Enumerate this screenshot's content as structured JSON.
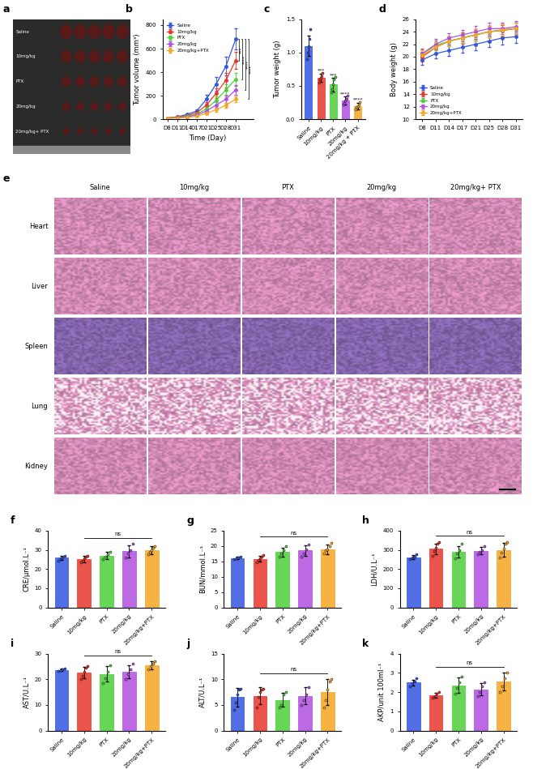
{
  "photo": {
    "panel": "a",
    "rows": [
      "Saline",
      "10mg/kg",
      "PTX",
      "20mg/kg",
      "20mg/kg+ PTX"
    ]
  },
  "histology": {
    "panel": "e",
    "columns": [
      "Saline",
      "10mg/kg",
      "PTX",
      "20mg/kg",
      "20mg/kg+ PTX"
    ],
    "rows": [
      "Heart",
      "Liver",
      "Spleen",
      "Lung",
      "Kidney"
    ]
  },
  "chart_data": [
    {
      "panel": "b",
      "type": "line",
      "ylabel": "Tumor volume (mm³)",
      "xlabel": "Time (Day)",
      "categories": [
        "D8",
        "D11",
        "D14",
        "D17",
        "D21",
        "D25",
        "D28",
        "D31"
      ],
      "ylim": [
        0,
        850
      ],
      "yticks": [
        0,
        200,
        400,
        600,
        800
      ],
      "legend": "upper left",
      "marker": "o",
      "series": [
        {
          "name": "Saline",
          "color": "#3355e0",
          "values": [
            10,
            20,
            40,
            70,
            170,
            300,
            450,
            680
          ],
          "errors": [
            2,
            4,
            8,
            15,
            35,
            60,
            80,
            90
          ]
        },
        {
          "name": "10mg/kg",
          "color": "#e8362b",
          "values": [
            10,
            18,
            30,
            55,
            120,
            220,
            330,
            500
          ],
          "errors": [
            2,
            3,
            6,
            12,
            25,
            40,
            60,
            70
          ]
        },
        {
          "name": "PTX",
          "color": "#4ccf3a",
          "values": [
            10,
            15,
            25,
            40,
            90,
            160,
            250,
            340
          ],
          "errors": [
            2,
            3,
            5,
            10,
            20,
            35,
            45,
            55
          ]
        },
        {
          "name": "20mg/kg",
          "color": "#b04fe0",
          "values": [
            8,
            12,
            20,
            35,
            70,
            120,
            170,
            250
          ],
          "errors": [
            2,
            3,
            4,
            8,
            15,
            25,
            30,
            40
          ]
        },
        {
          "name": "20mg/kg+PTX",
          "color": "#f5a623",
          "values": [
            8,
            10,
            15,
            25,
            50,
            80,
            120,
            170
          ],
          "errors": [
            1,
            2,
            3,
            5,
            10,
            15,
            20,
            25
          ]
        }
      ],
      "significance": [
        {
          "text": "***",
          "from": "Saline",
          "to": "10mg/kg"
        },
        {
          "text": "****",
          "from": "Saline",
          "to": "PTX"
        },
        {
          "text": "****",
          "from": "Saline",
          "to": "20mg/kg"
        },
        {
          "text": "****",
          "from": "Saline",
          "to": "20mg/kg+PTX"
        }
      ]
    },
    {
      "panel": "c",
      "type": "bar",
      "ylabel": "Tumor weight (g)",
      "categories": [
        "Saline",
        "10mg/kg",
        "PTX",
        "20mg/kg",
        "20mg/kg + PTX"
      ],
      "colors": [
        "#3355e0",
        "#e8362b",
        "#4ccf3a",
        "#b04fe0",
        "#f5a623"
      ],
      "values": [
        1.1,
        0.62,
        0.52,
        0.28,
        0.2
      ],
      "errors": [
        0.15,
        0.06,
        0.1,
        0.06,
        0.05
      ],
      "points": [
        [
          0.9,
          1.0,
          1.1,
          1.2,
          1.35
        ],
        [
          0.55,
          0.6,
          0.62,
          0.65,
          0.7
        ],
        [
          0.4,
          0.45,
          0.52,
          0.6,
          0.63
        ],
        [
          0.22,
          0.25,
          0.28,
          0.3,
          0.35
        ],
        [
          0.15,
          0.18,
          0.2,
          0.22,
          0.26
        ]
      ],
      "stars": [
        null,
        "***",
        "***",
        "****",
        "****"
      ],
      "ylim": [
        0,
        1.5
      ],
      "yticks": [
        {
          "value": 0,
          "label": "0.0"
        },
        0.5,
        {
          "value": 1,
          "label": "1.0"
        },
        1.5
      ]
    },
    {
      "panel": "d",
      "type": "line",
      "ylabel": "Body weight (g)",
      "categories": [
        "D8",
        "D11",
        "D14",
        "D17",
        "D21",
        "D25",
        "D28",
        "D31"
      ],
      "ylim": [
        10,
        26
      ],
      "yticks": [
        10,
        12,
        14,
        16,
        18,
        20,
        22,
        24,
        26
      ],
      "legend": "lower left",
      "marker": "o",
      "series": [
        {
          "name": "Saline",
          "color": "#3355e0",
          "values": [
            19.5,
            20.5,
            21,
            21.5,
            22,
            22.5,
            23,
            23.2
          ],
          "errors": [
            0.8,
            0.8,
            0.9,
            0.9,
            0.9,
            0.9,
            1.0,
            1.0
          ]
        },
        {
          "name": "10mg/kg",
          "color": "#e8362b",
          "values": [
            20,
            21.5,
            22.5,
            23,
            23.5,
            24,
            24.2,
            24.5
          ],
          "errors": [
            0.8,
            0.8,
            0.8,
            0.9,
            0.9,
            0.9,
            0.9,
            0.9
          ]
        },
        {
          "name": "PTX",
          "color": "#4ccf3a",
          "values": [
            20.5,
            21.8,
            22.5,
            23,
            23.5,
            24,
            24.3,
            24.5
          ],
          "errors": [
            0.7,
            0.8,
            0.8,
            0.8,
            0.9,
            0.9,
            0.9,
            0.9
          ]
        },
        {
          "name": "20mg/kg",
          "color": "#b04fe0",
          "values": [
            20.5,
            22,
            23,
            23.5,
            24,
            24.5,
            24.5,
            24.8
          ],
          "errors": [
            0.8,
            0.8,
            0.8,
            0.8,
            0.9,
            0.9,
            0.9,
            0.9
          ]
        },
        {
          "name": "20mg/kg+PTX",
          "color": "#f5a623",
          "values": [
            20.3,
            21.5,
            22.5,
            23,
            23.5,
            24,
            24.3,
            24.5
          ],
          "errors": [
            0.8,
            0.8,
            0.8,
            0.8,
            0.9,
            0.9,
            0.9,
            0.9
          ]
        }
      ]
    },
    {
      "panel": "f",
      "type": "bar",
      "ylabel": "CRE/μmol.L⁻¹",
      "categories": [
        "Saline",
        "10mg/kg",
        "PTX",
        "20mg/kg",
        "20mg/kg+PTX"
      ],
      "colors": [
        "#3355e0",
        "#e8362b",
        "#4ccf3a",
        "#b04fe0",
        "#f5a623"
      ],
      "values": [
        25.8,
        25.2,
        27.0,
        29.2,
        29.8
      ],
      "errors": [
        1.2,
        1.6,
        1.8,
        3.2,
        2.0
      ],
      "points": [
        [
          24.5,
          25.5,
          26,
          27
        ],
        [
          23.5,
          24.5,
          25.5,
          26.5,
          27
        ],
        [
          25,
          26.5,
          27.5,
          29
        ],
        [
          26,
          28,
          30,
          33
        ],
        [
          27.5,
          29,
          30,
          31,
          32
        ]
      ],
      "ns": {
        "text": "ns",
        "from": "10mg/kg",
        "to": "20mg/kg+PTX"
      },
      "ylim": [
        0,
        40
      ],
      "yticks": [
        0,
        10,
        20,
        30,
        40
      ]
    },
    {
      "panel": "g",
      "type": "bar",
      "ylabel": "BUN/mmol.L⁻¹",
      "categories": [
        "Saline",
        "10mg/kg",
        "PTX",
        "20mg/kg",
        "20mg/kg+PTX"
      ],
      "colors": [
        "#3355e0",
        "#e8362b",
        "#4ccf3a",
        "#b04fe0",
        "#f5a623"
      ],
      "values": [
        16,
        15.8,
        18,
        18.5,
        19
      ],
      "errors": [
        0.4,
        0.9,
        1.5,
        1.8,
        1.6
      ],
      "points": [
        [
          15.6,
          16,
          16.2,
          16.4
        ],
        [
          14.8,
          15.5,
          16,
          16.5,
          17
        ],
        [
          16.5,
          17.5,
          18.5,
          20
        ],
        [
          16.5,
          17.5,
          19,
          20.5
        ],
        [
          17.5,
          18.5,
          19,
          20,
          21
        ]
      ],
      "ns": {
        "text": "ns",
        "from": "10mg/kg",
        "to": "20mg/kg+PTX"
      },
      "ylim": [
        0,
        25
      ],
      "yticks": [
        0,
        5,
        10,
        15,
        20,
        25
      ]
    },
    {
      "panel": "h",
      "type": "bar",
      "ylabel": "LDH/U.L⁻¹",
      "categories": [
        "Saline",
        "10mg/kg",
        "PTX",
        "20mg/kg",
        "20mg/kg+PTX"
      ],
      "colors": [
        "#3355e0",
        "#e8362b",
        "#4ccf3a",
        "#b04fe0",
        "#f5a623"
      ],
      "values": [
        262,
        305,
        290,
        295,
        300
      ],
      "errors": [
        12,
        28,
        30,
        20,
        35
      ],
      "points": [
        [
          250,
          258,
          265,
          275
        ],
        [
          270,
          295,
          310,
          330,
          340
        ],
        [
          255,
          280,
          300,
          330
        ],
        [
          275,
          290,
          300,
          320
        ],
        [
          260,
          285,
          305,
          330,
          340
        ]
      ],
      "ns": {
        "text": "ns",
        "from": "10mg/kg",
        "to": "20mg/kg+PTX"
      },
      "ylim": [
        0,
        400
      ],
      "yticks": [
        0,
        100,
        200,
        300,
        400
      ]
    },
    {
      "panel": "i",
      "type": "bar",
      "ylabel": "AST/U.L⁻¹",
      "categories": [
        "Saline",
        "10mg/kg",
        "PTX",
        "20mg/kg",
        "20mg/kg+PTX"
      ],
      "colors": [
        "#3355e0",
        "#e8362b",
        "#4ccf3a",
        "#b04fe0",
        "#f5a623"
      ],
      "values": [
        23.7,
        22.5,
        22.0,
        23.0,
        25.5
      ],
      "errors": [
        0.5,
        2.2,
        3.0,
        2.5,
        1.5
      ],
      "points": [
        [
          23.2,
          23.5,
          24,
          24.2
        ],
        [
          20,
          21.5,
          23,
          24.5,
          25
        ],
        [
          18.5,
          20.5,
          23,
          25.5
        ],
        [
          20,
          22,
          24,
          26
        ],
        [
          24,
          25,
          26,
          27
        ]
      ],
      "ns": {
        "text": "ns",
        "from": "10mg/kg",
        "to": "20mg/kg+PTX"
      },
      "ylim": [
        0,
        30
      ],
      "yticks": [
        0,
        10,
        20,
        30
      ]
    },
    {
      "panel": "j",
      "type": "bar",
      "ylabel": "ALT/U.L⁻¹",
      "categories": [
        "Saline",
        "10mg/kg",
        "PTX",
        "20mg/kg",
        "20mg/kg+PTX"
      ],
      "colors": [
        "#3355e0",
        "#e8362b",
        "#4ccf3a",
        "#b04fe0",
        "#f5a623"
      ],
      "values": [
        6.5,
        6.8,
        6.0,
        6.8,
        7.5
      ],
      "errors": [
        1.8,
        1.6,
        1.4,
        1.6,
        2.5
      ],
      "points": [
        [
          4,
          5.5,
          7,
          8,
          8.2
        ],
        [
          4.5,
          6.5,
          7.5,
          8,
          8.2
        ],
        [
          4.5,
          5,
          7,
          7.5
        ],
        [
          5,
          6,
          7,
          8.5
        ],
        [
          4.5,
          6,
          8,
          9.5,
          10
        ]
      ],
      "ns": {
        "text": "ns",
        "from": "10mg/kg",
        "to": "20mg/kg+PTX"
      },
      "ylim": [
        0,
        15
      ],
      "yticks": [
        0,
        5,
        10,
        15
      ]
    },
    {
      "panel": "k",
      "type": "bar",
      "ylabel": "AKP/unit 100ml⁻¹",
      "categories": [
        "Saline",
        "10mg/kg",
        "PTX",
        "20mg/kg",
        "20mg/kg+PTX"
      ],
      "colors": [
        "#3355e0",
        "#e8362b",
        "#4ccf3a",
        "#b04fe0",
        "#f5a623"
      ],
      "values": [
        2.5,
        1.85,
        2.35,
        2.15,
        2.55
      ],
      "errors": [
        0.15,
        0.12,
        0.4,
        0.3,
        0.45
      ],
      "points": [
        [
          2.3,
          2.45,
          2.55,
          2.7
        ],
        [
          1.7,
          1.8,
          1.9,
          2.0
        ],
        [
          1.9,
          2.2,
          2.5,
          2.8
        ],
        [
          1.8,
          2.0,
          2.3,
          2.5
        ],
        [
          2.0,
          2.3,
          2.7,
          3.0
        ]
      ],
      "ns": {
        "text": "ns",
        "from": "10mg/kg",
        "to": "20mg/kg+PTX"
      },
      "ylim": [
        0,
        4
      ],
      "yticks": [
        0,
        1,
        2,
        3,
        4
      ]
    }
  ]
}
